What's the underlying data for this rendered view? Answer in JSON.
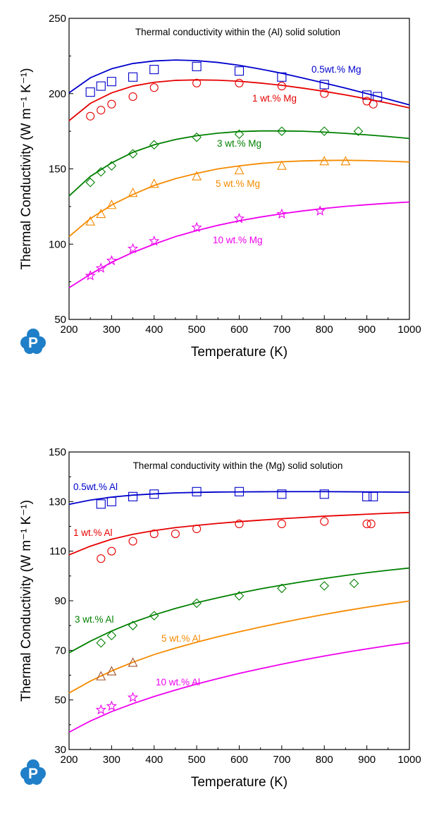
{
  "chart_data": [
    {
      "type": "line",
      "title": "Thermal conductivity within the (Al) solid solution",
      "xlabel": "Temperature (K)",
      "ylabel": "Thermal Conductivity (W m⁻¹ K⁻¹)",
      "xlim": [
        200,
        1000
      ],
      "ylim": [
        50,
        250
      ],
      "xticks": [
        200,
        300,
        400,
        500,
        600,
        700,
        800,
        900,
        1000
      ],
      "yticks": [
        50,
        100,
        150,
        200,
        250
      ],
      "legend": "series labels placed next to curves",
      "series": [
        {
          "name": "0.5wt.% Mg",
          "color": "#0000cc",
          "marker": "square",
          "curve": {
            "x": [
              200,
              250,
              300,
              350,
              400,
              450,
              500,
              550,
              600,
              650,
              700,
              750,
              800,
              850,
              900,
              950,
              1000
            ],
            "y": [
              200.5,
              210.5,
              216.5,
              220,
              221.7,
              222.3,
              221.9,
              220.7,
              218.8,
              216.3,
              213.5,
              210.3,
              207,
              203.6,
              200,
              196.3,
              192.5
            ]
          },
          "points": {
            "x": [
              250,
              275,
              300,
              350,
              400,
              500,
              600,
              700,
              800,
              900,
              925
            ],
            "y": [
              201,
              205,
              208,
              211,
              216,
              218,
              215,
              211,
              206,
              199,
              198
            ]
          }
        },
        {
          "name": "1 wt.% Mg",
          "color": "#e60000",
          "marker": "circle",
          "curve": {
            "x": [
              200,
              250,
              300,
              350,
              400,
              450,
              500,
              550,
              600,
              650,
              700,
              750,
              800,
              850,
              900,
              950,
              1000
            ],
            "y": [
              182,
              193.5,
              200.5,
              205,
              207.5,
              208.8,
              209.1,
              208.9,
              208.2,
              207,
              205.5,
              203.6,
              201.5,
              199.1,
              196.5,
              193.6,
              190.5
            ]
          },
          "points": {
            "x": [
              250,
              275,
              300,
              350,
              400,
              500,
              600,
              700,
              800,
              900,
              915
            ],
            "y": [
              185,
              189,
              193,
              198,
              204,
              207,
              207,
              205,
              200,
              195,
              193
            ]
          }
        },
        {
          "name": "3 wt.% Mg",
          "color": "#008000",
          "marker": "diamond",
          "curve": {
            "x": [
              200,
              250,
              300,
              350,
              400,
              450,
              500,
              550,
              600,
              650,
              700,
              750,
              800,
              850,
              900,
              950,
              1000
            ],
            "y": [
              132,
              145,
              154,
              161,
              166,
              169.5,
              172,
              173.7,
              174.8,
              175.2,
              175.2,
              175,
              174.4,
              173.6,
              172.6,
              171.5,
              170.2
            ]
          },
          "points": {
            "x": [
              250,
              275,
              300,
              350,
              400,
              500,
              600,
              700,
              800,
              880
            ],
            "y": [
              141,
              148,
              152,
              160,
              166,
              171,
              173,
              175,
              175,
              175
            ]
          }
        },
        {
          "name": "5 wt.% Mg",
          "color": "#f58a00",
          "marker": "triangle",
          "curve": {
            "x": [
              200,
              250,
              300,
              350,
              400,
              450,
              500,
              550,
              600,
              650,
              700,
              750,
              800,
              850,
              900,
              950,
              1000
            ],
            "y": [
              105,
              117,
              126,
              133,
              139,
              143.5,
              147,
              150,
              152,
              153.6,
              154.7,
              155.3,
              155.6,
              155.7,
              155.5,
              155.1,
              154.6
            ]
          },
          "points": {
            "x": [
              250,
              275,
              300,
              350,
              400,
              500,
              600,
              700,
              800,
              850
            ],
            "y": [
              115,
              120,
              126,
              134,
              140,
              145,
              149,
              152,
              155,
              155
            ]
          }
        },
        {
          "name": "10 wt.% Mg",
          "color": "#ee00ee",
          "marker": "star",
          "curve": {
            "x": [
              200,
              250,
              300,
              350,
              400,
              450,
              500,
              550,
              600,
              650,
              700,
              750,
              800,
              850,
              900,
              950,
              1000
            ],
            "y": [
              71,
              80,
              88,
              94.5,
              100,
              105,
              109,
              112.5,
              115.5,
              118,
              120.2,
              122.1,
              123.7,
              125.1,
              126.2,
              127.2,
              128
            ]
          },
          "points": {
            "x": [
              250,
              275,
              300,
              350,
              400,
              500,
              600,
              700,
              790
            ],
            "y": [
              79,
              84,
              89,
              97,
              102,
              111,
              117,
              120,
              122
            ]
          }
        }
      ]
    },
    {
      "type": "line",
      "title": "Thermal conductivity within the (Mg) solid solution",
      "xlabel": "Temperature (K)",
      "ylabel": "Thermal Conductivity (W m⁻¹ K⁻¹)",
      "xlim": [
        200,
        1000
      ],
      "ylim": [
        30,
        150
      ],
      "xticks": [
        200,
        300,
        400,
        500,
        600,
        700,
        800,
        900,
        1000
      ],
      "yticks": [
        30,
        50,
        70,
        90,
        110,
        130,
        150
      ],
      "legend": "series labels placed next to curves",
      "series": [
        {
          "name": "0.5wt.% Al",
          "color": "#0000cc",
          "marker": "square",
          "curve": {
            "x": [
              200,
              250,
              300,
              350,
              400,
              450,
              500,
              550,
              600,
              650,
              700,
              750,
              800,
              850,
              900,
              950,
              1000
            ],
            "y": [
              128.9,
              130.6,
              131.8,
              132.6,
              133.1,
              133.5,
              133.7,
              133.85,
              133.9,
              133.95,
              134,
              134,
              134,
              133.95,
              133.9,
              133.85,
              133.8
            ]
          },
          "points": {
            "x": [
              275,
              300,
              350,
              400,
              500,
              600,
              700,
              800,
              900,
              915
            ],
            "y": [
              129,
              130,
              132,
              133,
              134,
              134,
              133,
              133,
              132,
              132
            ]
          }
        },
        {
          "name": "1 wt.% Al",
          "color": "#e60000",
          "marker": "circle",
          "curve": {
            "x": [
              200,
              250,
              300,
              350,
              400,
              450,
              500,
              550,
              600,
              650,
              700,
              750,
              800,
              850,
              900,
              950,
              1000
            ],
            "y": [
              108.5,
              112,
              114.8,
              116.8,
              118.3,
              119.5,
              120.4,
              121.2,
              121.9,
              122.5,
              123.1,
              123.6,
              124.1,
              124.5,
              124.9,
              125.3,
              125.6
            ]
          },
          "points": {
            "x": [
              275,
              300,
              350,
              400,
              450,
              500,
              600,
              700,
              800,
              900,
              910
            ],
            "y": [
              107,
              110,
              114,
              117,
              117,
              119,
              121,
              121,
              122,
              121,
              121
            ]
          }
        },
        {
          "name": "3 wt.% Al",
          "color": "#008000",
          "marker": "diamond",
          "curve": {
            "x": [
              200,
              250,
              300,
              350,
              400,
              450,
              500,
              550,
              600,
              650,
              700,
              750,
              800,
              850,
              900,
              950,
              1000
            ],
            "y": [
              69,
              73.7,
              77.8,
              81.3,
              84.3,
              86.9,
              89.2,
              91.2,
              93.1,
              94.8,
              96.3,
              97.7,
              99,
              100.2,
              101.3,
              102.3,
              103.2
            ]
          },
          "points": {
            "x": [
              275,
              300,
              350,
              400,
              500,
              600,
              700,
              800,
              870
            ],
            "y": [
              73,
              76,
              80,
              84,
              89,
              92,
              95,
              96,
              97
            ]
          }
        },
        {
          "name": "5 wt.% Al",
          "color": "#f58a00",
          "marker": "triangle",
          "marker_color": "#a0522d",
          "curve": {
            "x": [
              200,
              250,
              300,
              350,
              400,
              450,
              500,
              550,
              600,
              650,
              700,
              750,
              800,
              850,
              900,
              950,
              1000
            ],
            "y": [
              52.8,
              57.6,
              61.7,
              65.2,
              68.3,
              70.9,
              73.3,
              75.5,
              77.5,
              79.4,
              81.2,
              82.9,
              84.5,
              86,
              87.4,
              88.7,
              89.9
            ]
          },
          "points": {
            "x": [
              275,
              300,
              350
            ],
            "y": [
              59.5,
              61.5,
              65
            ]
          }
        },
        {
          "name": "10 wt.% Al",
          "color": "#ee00ee",
          "marker": "star",
          "curve": {
            "x": [
              200,
              250,
              300,
              350,
              400,
              450,
              500,
              550,
              600,
              650,
              700,
              750,
              800,
              850,
              900,
              950,
              1000
            ],
            "y": [
              37,
              41.5,
              45.3,
              48.5,
              51.4,
              54,
              56.4,
              58.6,
              60.7,
              62.6,
              64.4,
              66.1,
              67.7,
              69.2,
              70.6,
              71.9,
              73.1
            ]
          },
          "points": {
            "x": [
              275,
              300,
              350
            ],
            "y": [
              46,
              47.5,
              51
            ]
          }
        }
      ]
    }
  ],
  "logo": {
    "glyph": "P",
    "color": "#1f7fc8"
  }
}
